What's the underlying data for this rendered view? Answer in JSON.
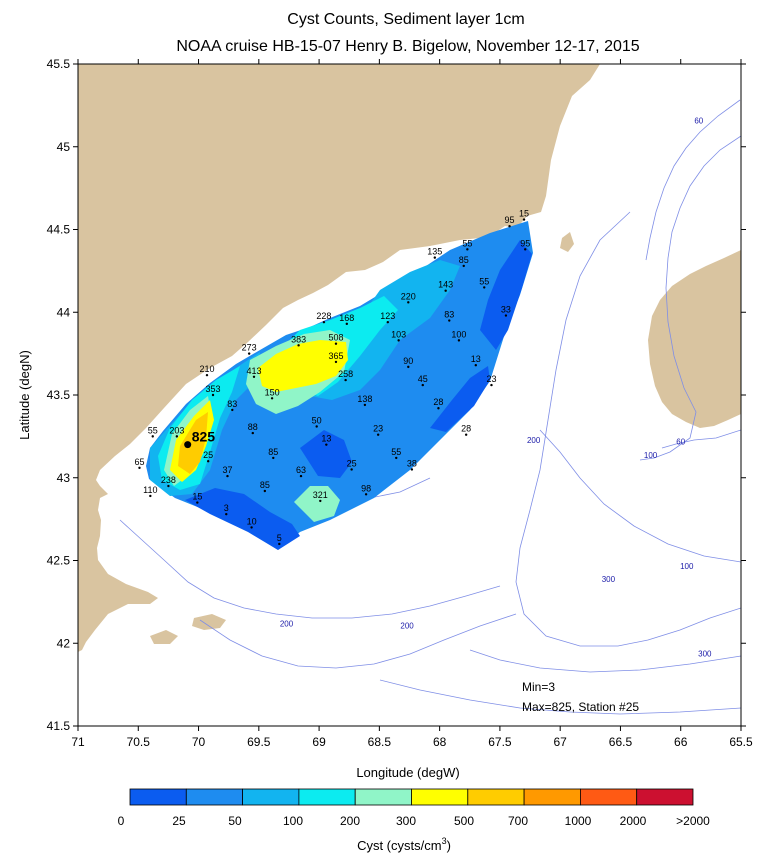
{
  "chart_data": {
    "type": "heatmap",
    "title": "Cyst Counts, Sediment layer 1cm",
    "subtitle": "NOAA cruise HB-15-07 Henry B. Bigelow, November 12-17, 2015",
    "xlabel": "Longitude (degW)",
    "ylabel": "Latitude (degN)",
    "xlim": [
      71,
      65.5
    ],
    "ylim": [
      41.5,
      45.5
    ],
    "x_ticks": [
      "71",
      "70.5",
      "70",
      "69.5",
      "69",
      "68.5",
      "68",
      "67.5",
      "67",
      "66.5",
      "66",
      "65.5"
    ],
    "y_ticks": [
      "41.5",
      "42",
      "42.5",
      "43",
      "43.5",
      "44",
      "44.5",
      "45",
      "45.5"
    ],
    "colorbar": {
      "label": "Cyst (cysts/cm",
      "label_sup": "3",
      "label_close": ")",
      "tick_labels": [
        "0",
        "25",
        "50",
        "100",
        "200",
        "300",
        "500",
        "700",
        "1000",
        "2000",
        ">2000"
      ],
      "colors": [
        "#0b5cf0",
        "#1e8cf0",
        "#12b4f0",
        "#0cebf0",
        "#90f5c8",
        "#ffff00",
        "#ffcc00",
        "#ff9900",
        "#ff5a14",
        "#cc1030"
      ]
    },
    "annotations": [
      "Min=3",
      "Max=825, Station #25"
    ],
    "max_station": {
      "lon": 70.09,
      "lat": 43.2,
      "value": "825"
    },
    "stations": [
      {
        "label": "15",
        "lon": 67.3,
        "lat": 44.56
      },
      {
        "label": "95",
        "lon": 67.42,
        "lat": 44.52
      },
      {
        "label": "95",
        "lon": 67.29,
        "lat": 44.38
      },
      {
        "label": "55",
        "lon": 67.77,
        "lat": 44.38
      },
      {
        "label": "135",
        "lon": 68.04,
        "lat": 44.33
      },
      {
        "label": "85",
        "lon": 67.8,
        "lat": 44.28
      },
      {
        "label": "143",
        "lon": 67.95,
        "lat": 44.13
      },
      {
        "label": "55",
        "lon": 67.63,
        "lat": 44.15
      },
      {
        "label": "220",
        "lon": 68.26,
        "lat": 44.06
      },
      {
        "label": "83",
        "lon": 67.92,
        "lat": 43.95
      },
      {
        "label": "33",
        "lon": 67.45,
        "lat": 43.98
      },
      {
        "label": "228",
        "lon": 68.96,
        "lat": 43.94
      },
      {
        "label": "168",
        "lon": 68.77,
        "lat": 43.93
      },
      {
        "label": "123",
        "lon": 68.43,
        "lat": 43.94
      },
      {
        "label": "103",
        "lon": 68.34,
        "lat": 43.83
      },
      {
        "label": "100",
        "lon": 67.84,
        "lat": 43.83
      },
      {
        "label": "508",
        "lon": 68.86,
        "lat": 43.81
      },
      {
        "label": "383",
        "lon": 69.17,
        "lat": 43.8
      },
      {
        "label": "273",
        "lon": 69.58,
        "lat": 43.75
      },
      {
        "label": "365",
        "lon": 68.86,
        "lat": 43.7
      },
      {
        "label": "90",
        "lon": 68.26,
        "lat": 43.67
      },
      {
        "label": "13",
        "lon": 67.7,
        "lat": 43.68
      },
      {
        "label": "210",
        "lon": 69.93,
        "lat": 43.62
      },
      {
        "label": "413",
        "lon": 69.54,
        "lat": 43.61
      },
      {
        "label": "258",
        "lon": 68.78,
        "lat": 43.59
      },
      {
        "label": "45",
        "lon": 68.14,
        "lat": 43.56
      },
      {
        "label": "23",
        "lon": 67.57,
        "lat": 43.56
      },
      {
        "label": "353",
        "lon": 69.88,
        "lat": 43.5
      },
      {
        "label": "150",
        "lon": 69.39,
        "lat": 43.48
      },
      {
        "label": "138",
        "lon": 68.62,
        "lat": 43.44
      },
      {
        "label": "28",
        "lon": 68.01,
        "lat": 43.42
      },
      {
        "label": "83",
        "lon": 69.72,
        "lat": 43.41
      },
      {
        "label": "50",
        "lon": 69.02,
        "lat": 43.31
      },
      {
        "label": "23",
        "lon": 68.51,
        "lat": 43.26
      },
      {
        "label": "28",
        "lon": 67.78,
        "lat": 43.26
      },
      {
        "label": "55",
        "lon": 70.38,
        "lat": 43.25
      },
      {
        "label": "203",
        "lon": 70.18,
        "lat": 43.25
      },
      {
        "label": "88",
        "lon": 69.55,
        "lat": 43.27
      },
      {
        "label": "13",
        "lon": 68.94,
        "lat": 43.2
      },
      {
        "label": "55",
        "lon": 68.36,
        "lat": 43.12
      },
      {
        "label": "25",
        "lon": 69.92,
        "lat": 43.1
      },
      {
        "label": "85",
        "lon": 69.38,
        "lat": 43.12
      },
      {
        "label": "25",
        "lon": 68.73,
        "lat": 43.05
      },
      {
        "label": "38",
        "lon": 68.23,
        "lat": 43.05
      },
      {
        "label": "65",
        "lon": 70.49,
        "lat": 43.06
      },
      {
        "label": "37",
        "lon": 69.76,
        "lat": 43.01
      },
      {
        "label": "63",
        "lon": 69.15,
        "lat": 43.01
      },
      {
        "label": "85",
        "lon": 69.45,
        "lat": 42.92
      },
      {
        "label": "238",
        "lon": 70.25,
        "lat": 42.95
      },
      {
        "label": "98",
        "lon": 68.61,
        "lat": 42.9
      },
      {
        "label": "321",
        "lon": 68.99,
        "lat": 42.86
      },
      {
        "label": "110",
        "lon": 70.4,
        "lat": 42.89
      },
      {
        "label": "15",
        "lon": 70.01,
        "lat": 42.85
      },
      {
        "label": "3",
        "lon": 69.77,
        "lat": 42.78
      },
      {
        "label": "10",
        "lon": 69.56,
        "lat": 42.7
      },
      {
        "label": "5",
        "lon": 69.33,
        "lat": 42.6
      }
    ],
    "bathymetry_labels": [
      {
        "label": "60",
        "lon": 65.85,
        "lat": 45.14
      },
      {
        "label": "60",
        "lon": 66.0,
        "lat": 43.2
      },
      {
        "label": "100",
        "lon": 66.25,
        "lat": 43.12
      },
      {
        "label": "100",
        "lon": 65.95,
        "lat": 42.45
      },
      {
        "label": "200",
        "lon": 67.22,
        "lat": 43.21
      },
      {
        "label": "200",
        "lon": 69.27,
        "lat": 42.1
      },
      {
        "label": "200",
        "lon": 68.27,
        "lat": 42.09
      },
      {
        "label": "300",
        "lon": 66.6,
        "lat": 42.37
      },
      {
        "label": "300",
        "lon": 65.8,
        "lat": 41.92
      }
    ]
  }
}
